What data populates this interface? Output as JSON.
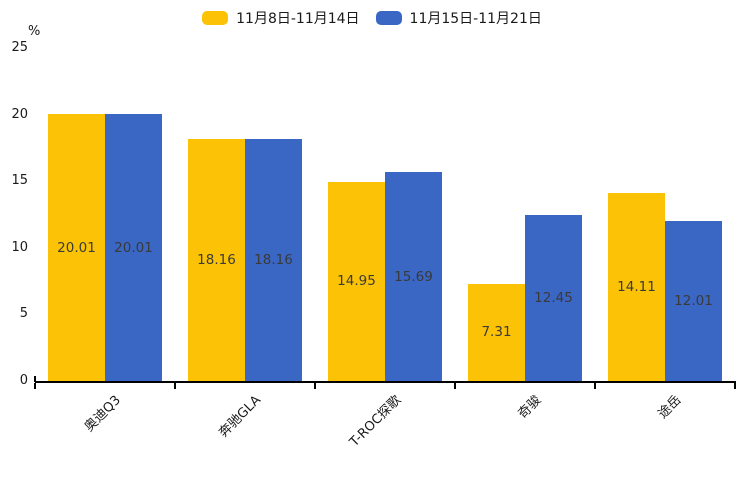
{
  "chart_data": {
    "type": "bar",
    "title": "",
    "xlabel": "",
    "ylabel": "%",
    "ylim": [
      0,
      25
    ],
    "yticks": [
      0,
      5,
      10,
      15,
      20,
      25
    ],
    "grid": false,
    "legend_position": "top-center",
    "value_labels": "centered-inside-bars",
    "categories": [
      "奥迪Q3",
      "奔驰GLA",
      "T-ROC探歌",
      "奇骏",
      "途岳"
    ],
    "series": [
      {
        "name": "11月8日-11月14日",
        "color": "#FCC306",
        "values": [
          20.01,
          18.16,
          14.95,
          7.31,
          14.11
        ]
      },
      {
        "name": "11月15日-11月21日",
        "color": "#3A66C4",
        "values": [
          20.01,
          18.16,
          15.69,
          12.45,
          12.01
        ]
      }
    ],
    "colors": {
      "axis": "#000000",
      "tick_text": "#1a1a1a",
      "bar_value_text": "#3a3a3a",
      "background": "#ffffff"
    }
  }
}
